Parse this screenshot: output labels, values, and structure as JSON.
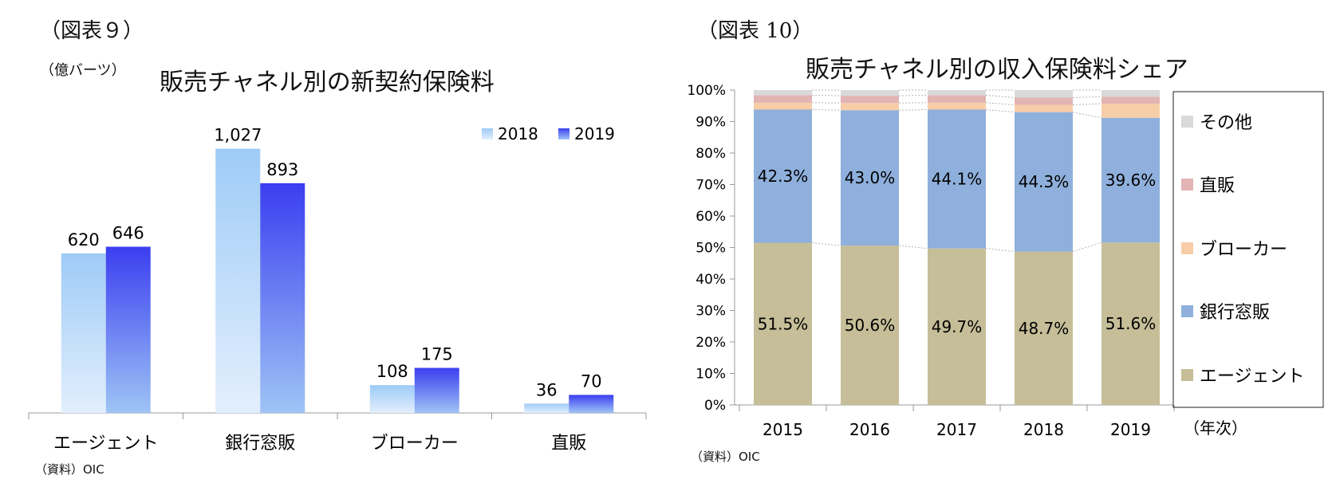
{
  "left": {
    "figure_label": "（図表９）",
    "unit": "（億バーツ）",
    "source": "（資料）OIC"
  },
  "right": {
    "figure_label": "（図表 10）",
    "source": "（資料）OIC",
    "x_unit": "（年次）"
  },
  "chart_data": [
    {
      "type": "bar",
      "title": "販売チャネル別の新契約保険料",
      "categories": [
        "エージェント",
        "銀行窓販",
        "ブローカー",
        "直販"
      ],
      "series": [
        {
          "name": "2018",
          "values": [
            620,
            1027,
            108,
            36
          ]
        },
        {
          "name": "2019",
          "values": [
            646,
            893,
            175,
            70
          ]
        }
      ],
      "data_labels": [
        [
          "620",
          "1,027",
          "108",
          "36"
        ],
        [
          "646",
          "893",
          "175",
          "70"
        ]
      ],
      "ylim": [
        0,
        1100
      ],
      "grid": false,
      "legend_position": "top-right",
      "colors": {
        "2018": "#9ecbf7",
        "2019": "#3a3ef0"
      }
    },
    {
      "type": "bar",
      "stacked": true,
      "title": "販売チャネル別の収入保険料シェア",
      "categories": [
        "2015",
        "2016",
        "2017",
        "2018",
        "2019"
      ],
      "series": [
        {
          "name": "エージェント",
          "values": [
            51.5,
            50.6,
            49.7,
            48.7,
            51.6
          ],
          "color": "#c5be98"
        },
        {
          "name": "銀行窓販",
          "values": [
            42.3,
            43.0,
            44.1,
            44.3,
            39.6
          ],
          "color": "#8fb0dc"
        },
        {
          "name": "ブローカー",
          "values": [
            2.2,
            2.3,
            2.2,
            2.3,
            4.5
          ],
          "color": "#f7cda8"
        },
        {
          "name": "直販",
          "values": [
            2.4,
            2.3,
            2.4,
            2.3,
            2.2
          ],
          "color": "#e2b4b4"
        },
        {
          "name": "その他",
          "values": [
            1.6,
            1.8,
            1.6,
            2.4,
            2.1
          ],
          "color": "#d9d9d9"
        }
      ],
      "data_labels": {
        "エージェント": [
          "51.5%",
          "50.6%",
          "49.7%",
          "48.7%",
          "51.6%"
        ],
        "銀行窓販": [
          "42.3%",
          "43.0%",
          "44.1%",
          "44.3%",
          "39.6%"
        ]
      },
      "y_ticks": [
        "0%",
        "10%",
        "20%",
        "30%",
        "40%",
        "50%",
        "60%",
        "70%",
        "80%",
        "90%",
        "100%"
      ],
      "ylim": [
        0,
        100
      ],
      "grid": false,
      "legend_position": "right",
      "legend_order": [
        "その他",
        "直販",
        "ブローカー",
        "銀行窓販",
        "エージェント"
      ]
    }
  ]
}
